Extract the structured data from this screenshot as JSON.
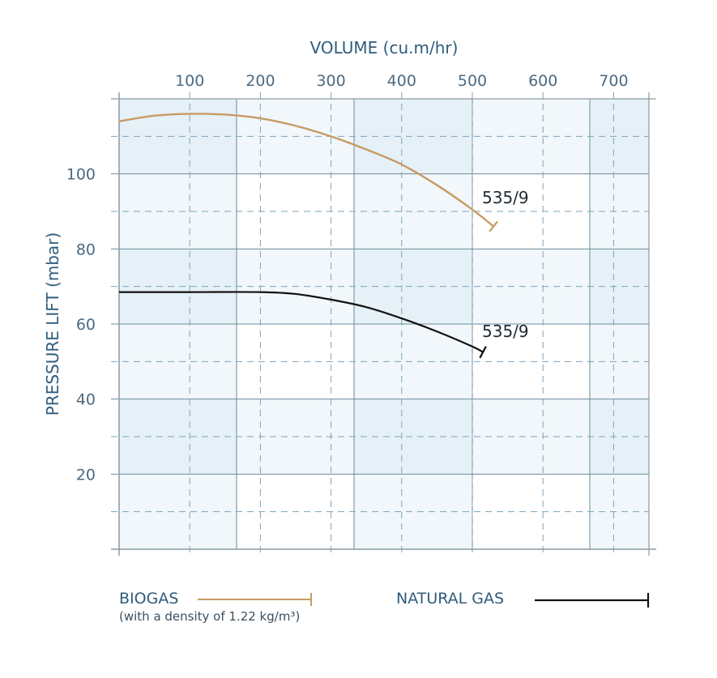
{
  "chart_data": {
    "type": "line",
    "title": "",
    "xlabel": "VOLUME (cu.m/hr)",
    "ylabel": "PRESSURE LIFT (mbar)",
    "x_ticks": [
      100,
      200,
      300,
      400,
      500,
      600,
      700
    ],
    "y_ticks": [
      20,
      40,
      60,
      80,
      100
    ],
    "xlim": [
      0,
      750
    ],
    "ylim": [
      0,
      120
    ],
    "grid": true,
    "legend_position": "bottom",
    "series": [
      {
        "name": "BIOGAS",
        "note": "(with a density of 1.22 kg/m³)",
        "color": "#c89a64",
        "x": [
          0,
          50,
          100,
          150,
          200,
          250,
          300,
          350,
          400,
          450,
          500,
          530
        ],
        "y": [
          114,
          115.5,
          116,
          115.8,
          114.8,
          112.8,
          110,
          106.5,
          102.5,
          97,
          90.5,
          86
        ],
        "end_label": "535/9"
      },
      {
        "name": "NATURAL GAS",
        "color": "#111111",
        "x": [
          0,
          100,
          200,
          250,
          300,
          350,
          400,
          450,
          500,
          515
        ],
        "y": [
          68.5,
          68.5,
          68.5,
          68,
          66.5,
          64.5,
          61.5,
          58,
          54,
          52.5
        ],
        "end_label": "535/9"
      }
    ]
  },
  "legend": {
    "biogas": {
      "label": "BIOGAS",
      "note": "(with a density of 1.22 kg/m³)"
    },
    "natural_gas": {
      "label": "NATURAL GAS"
    }
  }
}
